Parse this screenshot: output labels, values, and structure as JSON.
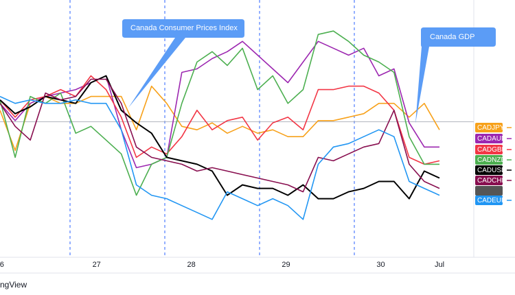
{
  "chart_data": {
    "type": "line",
    "x": [
      25.98,
      26.14,
      26.3,
      26.46,
      26.62,
      26.78,
      26.94,
      27.1,
      27.26,
      27.42,
      27.58,
      27.74,
      27.9,
      28.06,
      28.22,
      28.38,
      28.54,
      28.7,
      28.86,
      29.02,
      29.18,
      29.34,
      29.5,
      29.66,
      29.82,
      29.98,
      30.14,
      30.3,
      30.46,
      30.62
    ],
    "xlim": [
      25.98,
      30.62
    ],
    "xticks": [
      {
        "value": 26,
        "label": "6"
      },
      27,
      28,
      29,
      30,
      {
        "value": 30.62,
        "label": "Jul"
      }
    ],
    "ylim": [
      -1.18,
      1.06
    ],
    "zero_line": 0,
    "series": [
      {
        "name": "CADJPY",
        "color": "#f7a11a",
        "values": [
          0.1,
          -0.25,
          0.16,
          0.22,
          0.16,
          0.16,
          0.22,
          0.22,
          0.22,
          -0.07,
          0.31,
          0.16,
          -0.04,
          -0.07,
          -0.01,
          -0.1,
          -0.04,
          -0.1,
          -0.07,
          -0.13,
          -0.13,
          0.01,
          0.01,
          0.04,
          0.07,
          0.16,
          0.16,
          0.04,
          0.16,
          -0.07
        ]
      },
      {
        "name": "CADAUD",
        "color": "#9c27b0",
        "values": [
          0.16,
          0.01,
          0.16,
          0.22,
          0.25,
          0.28,
          0.34,
          0.4,
          -0.07,
          -0.4,
          -0.37,
          -0.31,
          0.43,
          0.46,
          0.55,
          0.61,
          0.7,
          0.58,
          0.46,
          0.34,
          0.52,
          0.7,
          0.64,
          0.58,
          0.64,
          0.4,
          0.46,
          -0.01,
          -0.22,
          -0.22
        ]
      },
      {
        "name": "CADGBP",
        "color": "#f23645",
        "values": [
          0.19,
          0.04,
          0.19,
          0.22,
          0.28,
          0.22,
          0.4,
          0.28,
          0.04,
          -0.31,
          -0.22,
          -0.28,
          -0.13,
          0.1,
          -0.07,
          0.01,
          0.04,
          -0.16,
          -0.01,
          0.04,
          -0.07,
          0.28,
          0.28,
          0.31,
          0.31,
          0.25,
          0.1,
          -0.31,
          -0.37,
          -0.34
        ]
      },
      {
        "name": "CADNZD",
        "color": "#4caf50",
        "values": [
          0.19,
          -0.31,
          0.22,
          0.16,
          0.25,
          -0.1,
          -0.04,
          -0.16,
          -0.28,
          -0.64,
          -0.37,
          -0.31,
          0.16,
          0.52,
          0.61,
          0.49,
          0.64,
          0.28,
          0.4,
          0.16,
          0.28,
          0.76,
          0.79,
          0.7,
          0.58,
          0.52,
          0.43,
          -0.13,
          -0.37,
          -0.37
        ]
      },
      {
        "name": "CADUSD",
        "color": "#000000",
        "values": [
          0.19,
          0.07,
          0.13,
          0.22,
          0.19,
          0.16,
          0.34,
          0.4,
          0.1,
          -0.01,
          -0.1,
          -0.31,
          -0.34,
          -0.37,
          -0.43,
          -0.64,
          -0.55,
          -0.58,
          -0.58,
          -0.64,
          -0.55,
          -0.67,
          -0.67,
          -0.61,
          -0.58,
          -0.52,
          -0.52,
          -0.67,
          -0.43,
          -0.49
        ]
      },
      {
        "name": "CADCHF",
        "color": "#880e4f",
        "values": [
          0.16,
          -0.04,
          -0.16,
          0.25,
          0.19,
          0.22,
          0.37,
          0.37,
          0.16,
          -0.22,
          -0.31,
          -0.34,
          -0.37,
          -0.43,
          -0.4,
          -0.43,
          -0.46,
          -0.49,
          -0.52,
          -0.55,
          -0.61,
          -0.31,
          -0.34,
          -0.28,
          -0.22,
          -0.19,
          0.1,
          -0.37,
          -0.52,
          -0.58
        ]
      },
      {
        "name": "CADEUR",
        "color": "#2196f3",
        "values": [
          0.22,
          0.16,
          0.19,
          0.16,
          0.16,
          0.19,
          0.16,
          0.16,
          -0.07,
          -0.55,
          -0.64,
          -0.67,
          -0.73,
          -0.79,
          -0.85,
          -0.61,
          -0.67,
          -0.73,
          -0.67,
          -0.73,
          -0.85,
          -0.37,
          -0.22,
          -0.19,
          -0.13,
          -0.07,
          -0.13,
          -0.52,
          -0.58,
          -0.64
        ]
      }
    ],
    "annotations": [
      "Canada Consumer Prices Index",
      "Canada GDP"
    ],
    "footer": "ngView"
  }
}
